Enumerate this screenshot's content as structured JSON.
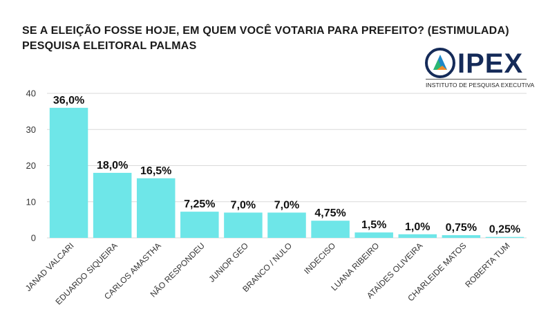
{
  "title_lines": [
    "SE A ELEIÇÃO FOSSE HOJE, EM QUEM VOCÊ VOTARIA PARA PREFEITO? (ESTIMULADA)",
    "PESQUISA ELEITORAL PALMAS"
  ],
  "logo": {
    "name": "IPEX",
    "subtitle": "INSTITUTO DE PESQUISA EXECUTIVA",
    "icon": "ipex-logo-icon"
  },
  "colors": {
    "bar": "#6ee6e8",
    "grid": "#d9d9d9",
    "brand_navy": "#152b59",
    "brand_green": "#2bb673",
    "brand_blue": "#1e88c7",
    "brand_orange": "#f28c28"
  },
  "chart_data": {
    "type": "bar",
    "title": "SE A ELEIÇÃO FOSSE HOJE, EM QUEM VOCÊ VOTARIA PARA PREFEITO? (ESTIMULADA)",
    "subtitle": "PESQUISA ELEITORAL PALMAS",
    "categories": [
      "JANAD VALCARI",
      "EDUARDO SIQUEIRA",
      "CARLOS AMASTHA",
      "NÃO RESPONDEU",
      "JUNIOR GEO",
      "BRANCO / NULO",
      "INDECISO",
      "LUANA RIBEIRO",
      "ATAÍDES OLIVEIRA",
      "CHARLEIDE MATOS",
      "ROBERTA TUM"
    ],
    "values": [
      36.0,
      18.0,
      16.5,
      7.25,
      7.0,
      7.0,
      4.75,
      1.5,
      1.0,
      0.75,
      0.25
    ],
    "data_labels": [
      "36,0%",
      "18,0%",
      "16,5%",
      "7,25%",
      "7,0%",
      "7,0%",
      "4,75%",
      "1,5%",
      "1,0%",
      "0,75%",
      "0,25%"
    ],
    "xlabel": "",
    "ylabel": "",
    "ylim": [
      0,
      40
    ],
    "yticks": [
      0,
      10,
      20,
      30,
      40
    ],
    "grid": true
  }
}
